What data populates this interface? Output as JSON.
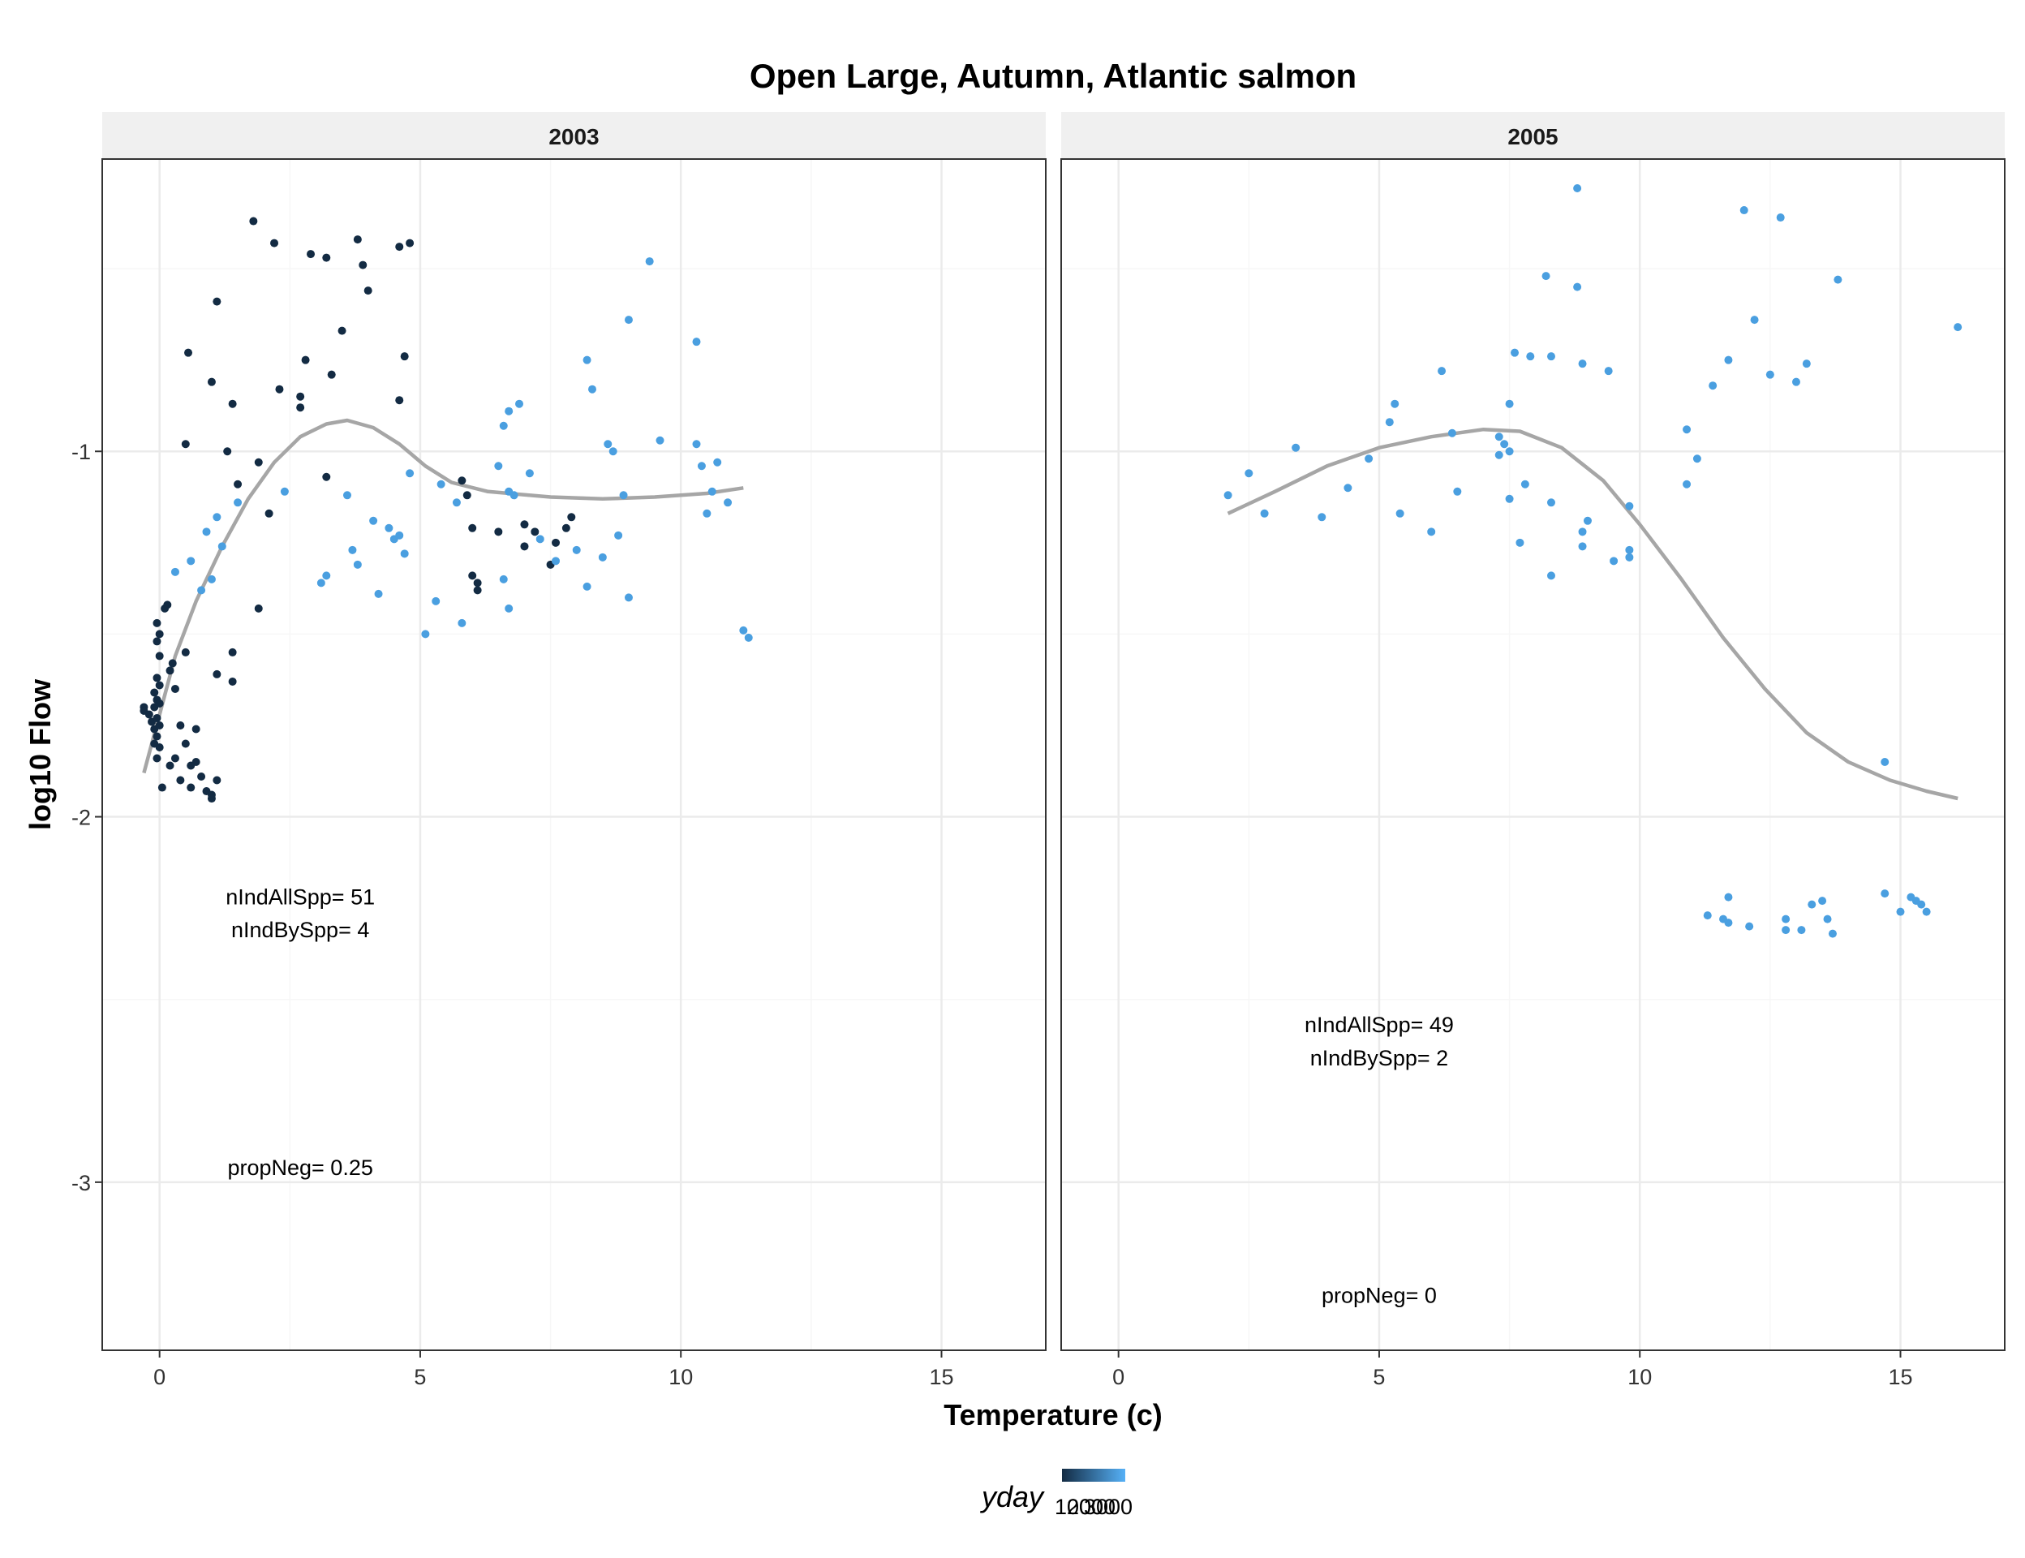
{
  "chart_data": {
    "type": "scatter",
    "title": "Open Large, Autumn, Atlantic salmon",
    "xlabel": "Temperature (c)",
    "ylabel": "log10 Flow",
    "xlim": [
      -1.1,
      17.0
    ],
    "ylim": [
      -3.46,
      -0.2
    ],
    "x_ticks": [
      0,
      5,
      10,
      15
    ],
    "y_ticks": [
      -1,
      -2,
      -3
    ],
    "grid": true,
    "legend": {
      "title": "yday",
      "position": "bottom",
      "tick_labels": [
        "1000",
        "2000",
        "3000"
      ],
      "low_color": "#132B43",
      "high_color": "#56B1F7"
    },
    "smooth_color": "#a6a6a6",
    "panels": [
      {
        "label": "2003",
        "annotations": {
          "n_all": "nIndAllSpp= 51",
          "n_by": "nIndBySpp= 4",
          "prop_neg": "propNeg= 0.25"
        },
        "annotation_positions": {
          "n_all": [
            2.7,
            -2.22
          ],
          "n_by": [
            2.7,
            -2.31
          ],
          "prop_neg": [
            2.7,
            -2.96
          ]
        },
        "smooth": [
          [
            -0.3,
            -1.88
          ],
          [
            0,
            -1.72
          ],
          [
            0.3,
            -1.56
          ],
          [
            0.7,
            -1.41
          ],
          [
            1.2,
            -1.26
          ],
          [
            1.7,
            -1.13
          ],
          [
            2.2,
            -1.03
          ],
          [
            2.7,
            -0.96
          ],
          [
            3.2,
            -0.925
          ],
          [
            3.6,
            -0.915
          ],
          [
            4.1,
            -0.935
          ],
          [
            4.6,
            -0.98
          ],
          [
            5.1,
            -1.04
          ],
          [
            5.6,
            -1.085
          ],
          [
            6.3,
            -1.11
          ],
          [
            7.5,
            -1.125
          ],
          [
            8.5,
            -1.13
          ],
          [
            9.5,
            -1.125
          ],
          [
            10.5,
            -1.115
          ],
          [
            11.2,
            -1.1
          ]
        ],
        "points_dark": [
          [
            -0.3,
            -1.7
          ],
          [
            -0.3,
            -1.71
          ],
          [
            -0.2,
            -1.72
          ],
          [
            -0.15,
            -1.74
          ],
          [
            -0.1,
            -1.66
          ],
          [
            -0.1,
            -1.7
          ],
          [
            -0.1,
            -1.76
          ],
          [
            -0.1,
            -1.8
          ],
          [
            -0.05,
            -1.62
          ],
          [
            -0.05,
            -1.68
          ],
          [
            -0.05,
            -1.73
          ],
          [
            -0.05,
            -1.78
          ],
          [
            -0.05,
            -1.84
          ],
          [
            -0.05,
            -1.52
          ],
          [
            -0.05,
            -1.47
          ],
          [
            0.0,
            -1.64
          ],
          [
            0.0,
            -1.69
          ],
          [
            0.0,
            -1.75
          ],
          [
            0.0,
            -1.81
          ],
          [
            0.0,
            -1.5
          ],
          [
            0.0,
            -1.56
          ],
          [
            0.05,
            -1.92
          ],
          [
            0.1,
            -1.43
          ],
          [
            0.15,
            -1.42
          ],
          [
            0.2,
            -1.6
          ],
          [
            0.2,
            -1.86
          ],
          [
            0.25,
            -1.58
          ],
          [
            0.3,
            -1.65
          ],
          [
            0.3,
            -1.84
          ],
          [
            0.4,
            -1.75
          ],
          [
            0.4,
            -1.9
          ],
          [
            0.5,
            -1.55
          ],
          [
            0.5,
            -1.8
          ],
          [
            0.5,
            -0.98
          ],
          [
            0.55,
            -0.73
          ],
          [
            0.6,
            -1.86
          ],
          [
            0.6,
            -1.92
          ],
          [
            0.7,
            -1.76
          ],
          [
            0.7,
            -1.85
          ],
          [
            0.8,
            -1.89
          ],
          [
            0.9,
            -1.93
          ],
          [
            1.0,
            -0.81
          ],
          [
            1.0,
            -1.94
          ],
          [
            1.0,
            -1.95
          ],
          [
            1.1,
            -0.59
          ],
          [
            1.1,
            -1.61
          ],
          [
            1.1,
            -1.9
          ],
          [
            1.3,
            -1.0
          ],
          [
            1.4,
            -0.87
          ],
          [
            1.4,
            -1.55
          ],
          [
            1.4,
            -1.63
          ],
          [
            1.5,
            -1.09
          ],
          [
            1.8,
            -0.37
          ],
          [
            1.9,
            -1.03
          ],
          [
            1.9,
            -1.43
          ],
          [
            2.1,
            -1.17
          ],
          [
            2.2,
            -0.43
          ],
          [
            2.3,
            -0.83
          ],
          [
            2.7,
            -0.85
          ],
          [
            2.7,
            -0.88
          ],
          [
            2.8,
            -0.75
          ],
          [
            2.9,
            -0.46
          ],
          [
            3.2,
            -0.47
          ],
          [
            3.2,
            -1.07
          ],
          [
            3.3,
            -0.79
          ],
          [
            3.5,
            -0.67
          ],
          [
            3.8,
            -0.42
          ],
          [
            3.9,
            -0.49
          ],
          [
            4.0,
            -0.56
          ],
          [
            4.6,
            -0.44
          ],
          [
            4.6,
            -0.86
          ],
          [
            4.7,
            -0.74
          ],
          [
            4.8,
            -0.43
          ],
          [
            5.8,
            -1.08
          ],
          [
            5.9,
            -1.12
          ],
          [
            6.0,
            -1.21
          ],
          [
            6.0,
            -1.34
          ],
          [
            6.1,
            -1.36
          ],
          [
            6.1,
            -1.38
          ],
          [
            6.5,
            -1.22
          ],
          [
            7.0,
            -1.2
          ],
          [
            7.0,
            -1.26
          ],
          [
            7.2,
            -1.22
          ],
          [
            7.5,
            -1.31
          ],
          [
            7.6,
            -1.25
          ],
          [
            7.8,
            -1.21
          ],
          [
            7.9,
            -1.18
          ]
        ],
        "points_light": [
          [
            0.3,
            -1.33
          ],
          [
            0.6,
            -1.3
          ],
          [
            0.8,
            -1.38
          ],
          [
            0.9,
            -1.22
          ],
          [
            1.0,
            -1.35
          ],
          [
            1.1,
            -1.18
          ],
          [
            1.2,
            -1.26
          ],
          [
            1.5,
            -1.14
          ],
          [
            2.4,
            -1.11
          ],
          [
            3.1,
            -1.36
          ],
          [
            3.2,
            -1.34
          ],
          [
            3.6,
            -1.12
          ],
          [
            3.7,
            -1.27
          ],
          [
            3.8,
            -1.31
          ],
          [
            4.1,
            -1.19
          ],
          [
            4.2,
            -1.39
          ],
          [
            4.4,
            -1.21
          ],
          [
            4.5,
            -1.24
          ],
          [
            4.6,
            -1.23
          ],
          [
            4.7,
            -1.28
          ],
          [
            4.8,
            -1.06
          ],
          [
            5.1,
            -1.5
          ],
          [
            5.3,
            -1.41
          ],
          [
            5.4,
            -1.09
          ],
          [
            5.7,
            -1.14
          ],
          [
            5.8,
            -1.47
          ],
          [
            6.6,
            -1.35
          ],
          [
            6.7,
            -1.43
          ],
          [
            6.7,
            -1.11
          ],
          [
            6.8,
            -1.12
          ],
          [
            6.5,
            -1.04
          ],
          [
            6.6,
            -0.93
          ],
          [
            6.7,
            -0.89
          ],
          [
            6.9,
            -0.87
          ],
          [
            7.1,
            -1.06
          ],
          [
            7.3,
            -1.24
          ],
          [
            7.6,
            -1.3
          ],
          [
            8.0,
            -1.27
          ],
          [
            8.2,
            -1.37
          ],
          [
            8.2,
            -0.75
          ],
          [
            8.3,
            -0.83
          ],
          [
            8.5,
            -1.29
          ],
          [
            8.6,
            -0.98
          ],
          [
            8.7,
            -1.0
          ],
          [
            8.8,
            -1.23
          ],
          [
            8.9,
            -1.12
          ],
          [
            9.0,
            -1.4
          ],
          [
            9.0,
            -0.64
          ],
          [
            9.4,
            -0.48
          ],
          [
            9.6,
            -0.97
          ],
          [
            10.3,
            -0.98
          ],
          [
            10.3,
            -0.7
          ],
          [
            10.4,
            -1.04
          ],
          [
            10.5,
            -1.17
          ],
          [
            10.6,
            -1.11
          ],
          [
            10.7,
            -1.03
          ],
          [
            10.9,
            -1.14
          ],
          [
            11.2,
            -1.49
          ],
          [
            11.3,
            -1.51
          ]
        ]
      },
      {
        "label": "2005",
        "annotations": {
          "n_all": "nIndAllSpp= 49",
          "n_by": "nIndBySpp= 2",
          "prop_neg": "propNeg= 0"
        },
        "annotation_positions": {
          "n_all": [
            5.0,
            -2.57
          ],
          "n_by": [
            5.0,
            -2.66
          ],
          "prop_neg": [
            5.0,
            -3.31
          ]
        },
        "smooth": [
          [
            2.1,
            -1.17
          ],
          [
            3.0,
            -1.11
          ],
          [
            4.0,
            -1.04
          ],
          [
            5.0,
            -0.99
          ],
          [
            6.0,
            -0.96
          ],
          [
            7.0,
            -0.94
          ],
          [
            7.7,
            -0.945
          ],
          [
            8.5,
            -0.99
          ],
          [
            9.3,
            -1.08
          ],
          [
            10.0,
            -1.2
          ],
          [
            10.8,
            -1.35
          ],
          [
            11.6,
            -1.51
          ],
          [
            12.4,
            -1.65
          ],
          [
            13.2,
            -1.77
          ],
          [
            14.0,
            -1.85
          ],
          [
            14.8,
            -1.9
          ],
          [
            15.5,
            -1.93
          ],
          [
            16.1,
            -1.95
          ]
        ],
        "points_dark": [],
        "points_light": [
          [
            2.1,
            -1.12
          ],
          [
            2.5,
            -1.06
          ],
          [
            2.8,
            -1.17
          ],
          [
            3.4,
            -0.99
          ],
          [
            3.9,
            -1.18
          ],
          [
            4.4,
            -1.1
          ],
          [
            4.8,
            -1.02
          ],
          [
            5.2,
            -0.92
          ],
          [
            5.3,
            -0.87
          ],
          [
            5.4,
            -1.17
          ],
          [
            6.0,
            -1.22
          ],
          [
            6.2,
            -0.78
          ],
          [
            6.4,
            -0.95
          ],
          [
            6.5,
            -1.11
          ],
          [
            7.3,
            -1.01
          ],
          [
            7.3,
            -0.96
          ],
          [
            7.4,
            -0.98
          ],
          [
            7.5,
            -1.13
          ],
          [
            7.5,
            -0.87
          ],
          [
            7.5,
            -1.0
          ],
          [
            7.6,
            -0.73
          ],
          [
            7.7,
            -1.25
          ],
          [
            7.8,
            -1.09
          ],
          [
            7.9,
            -0.74
          ],
          [
            8.3,
            -1.14
          ],
          [
            8.3,
            -0.74
          ],
          [
            8.2,
            -0.52
          ],
          [
            8.3,
            -1.34
          ],
          [
            8.8,
            -0.28
          ],
          [
            8.8,
            -0.55
          ],
          [
            8.9,
            -0.76
          ],
          [
            8.9,
            -1.22
          ],
          [
            8.9,
            -1.26
          ],
          [
            9.0,
            -1.19
          ],
          [
            9.4,
            -0.78
          ],
          [
            9.5,
            -1.3
          ],
          [
            9.8,
            -1.27
          ],
          [
            9.8,
            -1.29
          ],
          [
            9.8,
            -1.15
          ],
          [
            10.9,
            -0.94
          ],
          [
            10.9,
            -1.09
          ],
          [
            11.1,
            -1.02
          ],
          [
            11.3,
            -2.27
          ],
          [
            11.6,
            -2.28
          ],
          [
            11.7,
            -2.29
          ],
          [
            11.7,
            -2.22
          ],
          [
            11.4,
            -0.82
          ],
          [
            11.7,
            -0.75
          ],
          [
            12.0,
            -0.34
          ],
          [
            12.1,
            -2.3
          ],
          [
            12.2,
            -0.64
          ],
          [
            12.5,
            -0.79
          ],
          [
            12.7,
            -0.36
          ],
          [
            12.8,
            -2.28
          ],
          [
            12.8,
            -2.31
          ],
          [
            13.0,
            -0.81
          ],
          [
            13.1,
            -2.31
          ],
          [
            13.2,
            -0.76
          ],
          [
            13.3,
            -2.24
          ],
          [
            13.5,
            -2.23
          ],
          [
            13.6,
            -2.28
          ],
          [
            13.7,
            -2.32
          ],
          [
            13.8,
            -0.53
          ],
          [
            14.7,
            -1.85
          ],
          [
            14.7,
            -2.21
          ],
          [
            15.0,
            -2.26
          ],
          [
            15.2,
            -2.22
          ],
          [
            15.3,
            -2.23
          ],
          [
            15.4,
            -2.24
          ],
          [
            15.5,
            -2.26
          ],
          [
            16.1,
            -0.66
          ]
        ]
      }
    ]
  }
}
